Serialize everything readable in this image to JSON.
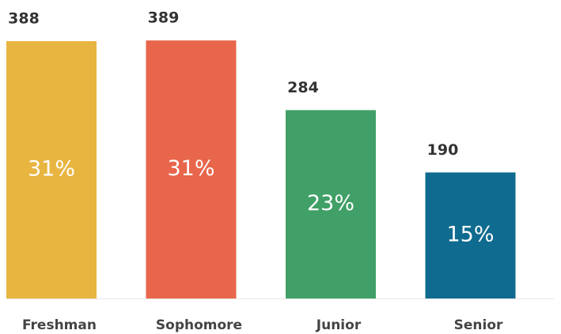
{
  "chart_data": {
    "type": "bar",
    "categories": [
      "Freshman",
      "Sophomore",
      "Junior",
      "Senior"
    ],
    "values": [
      388,
      389,
      284,
      190
    ],
    "percent_labels": [
      "31%",
      "31%",
      "23%",
      "15%"
    ],
    "colors": [
      "#e8b541",
      "#e8664b",
      "#40a067",
      "#0f6b8f"
    ],
    "ylim": [
      0,
      400
    ]
  }
}
